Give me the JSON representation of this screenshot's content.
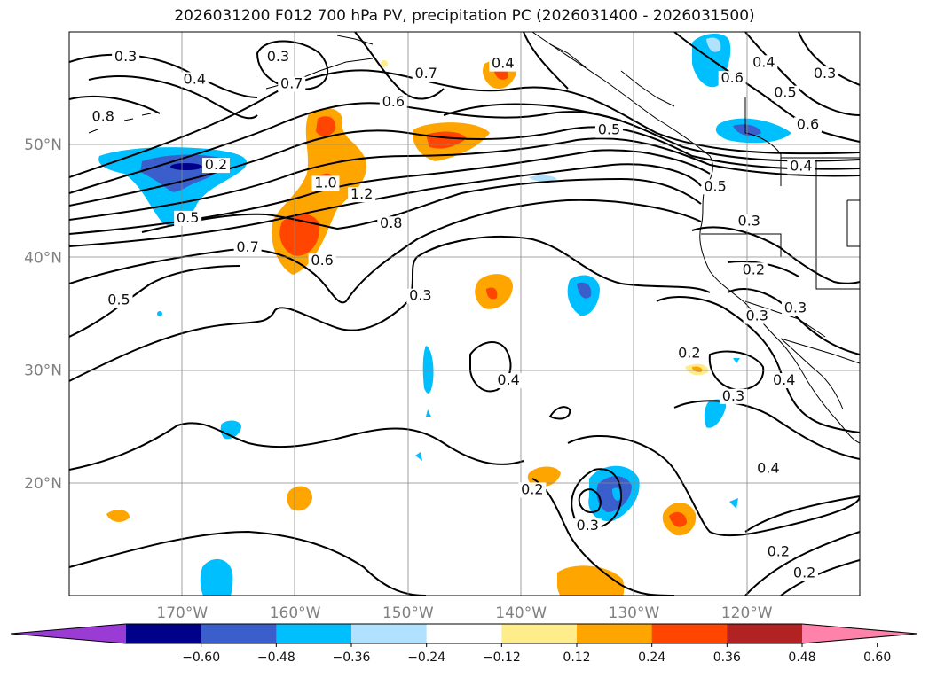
{
  "title": "2026031200 F012 700 hPa PV, precipitation PC (2026031400 - 2026031500)",
  "map": {
    "lon_range": [
      -180,
      -110
    ],
    "lat_range": [
      10,
      60
    ],
    "lat_ticks": [
      {
        "lat": 50,
        "label": "50°N"
      },
      {
        "lat": 40,
        "label": "40°N"
      },
      {
        "lat": 30,
        "label": "30°N"
      },
      {
        "lat": 20,
        "label": "20°N"
      }
    ],
    "lon_ticks": [
      {
        "lon": -170,
        "label": "170°W"
      },
      {
        "lon": -160,
        "label": "160°W"
      },
      {
        "lon": -150,
        "label": "150°W"
      },
      {
        "lon": -140,
        "label": "140°W"
      },
      {
        "lon": -130,
        "label": "130°W"
      },
      {
        "lon": -120,
        "label": "120°W"
      }
    ],
    "contour_labels": [
      {
        "text": "0.3",
        "lon": -175,
        "lat": 57.8
      },
      {
        "text": "0.4",
        "lon": -168.9,
        "lat": 55.8
      },
      {
        "text": "0.8",
        "lon": -177,
        "lat": 52.5
      },
      {
        "text": "0.2",
        "lon": -167,
        "lat": 48.2
      },
      {
        "text": "0.5",
        "lon": -169.5,
        "lat": 43.5
      },
      {
        "text": "0.3",
        "lon": -161.5,
        "lat": 57.8
      },
      {
        "text": "0.7",
        "lon": -160.3,
        "lat": 55.4
      },
      {
        "text": "0.7",
        "lon": -148.4,
        "lat": 56.3
      },
      {
        "text": "0.6",
        "lon": -151.3,
        "lat": 53.8
      },
      {
        "text": "0.4",
        "lon": -141.6,
        "lat": 57.2
      },
      {
        "text": "0.5",
        "lon": -132.2,
        "lat": 51.3
      },
      {
        "text": "1.0",
        "lon": -157.3,
        "lat": 46.6
      },
      {
        "text": "1.2",
        "lon": -154.1,
        "lat": 45.6
      },
      {
        "text": "0.8",
        "lon": -151.5,
        "lat": 43.0
      },
      {
        "text": "0.7",
        "lon": -164.2,
        "lat": 40.9
      },
      {
        "text": "0.6",
        "lon": -157.6,
        "lat": 39.7
      },
      {
        "text": "0.3",
        "lon": -148.9,
        "lat": 36.6
      },
      {
        "text": "0.5",
        "lon": -175.6,
        "lat": 36.2
      },
      {
        "text": "0.4",
        "lon": -141.1,
        "lat": 29.1
      },
      {
        "text": "0.2",
        "lon": -139.0,
        "lat": 19.4
      },
      {
        "text": "0.3",
        "lon": -134.1,
        "lat": 16.2
      },
      {
        "text": "0.6",
        "lon": -121.3,
        "lat": 55.9
      },
      {
        "text": "0.4",
        "lon": -118.5,
        "lat": 57.3
      },
      {
        "text": "0.5",
        "lon": -116.6,
        "lat": 54.6
      },
      {
        "text": "0.3",
        "lon": -113.1,
        "lat": 56.3
      },
      {
        "text": "0.6",
        "lon": -114.6,
        "lat": 51.8
      },
      {
        "text": "0.4",
        "lon": -115.2,
        "lat": 48.1
      },
      {
        "text": "0.5",
        "lon": -122.8,
        "lat": 46.3
      },
      {
        "text": "0.3",
        "lon": -119.8,
        "lat": 43.2
      },
      {
        "text": "0.2",
        "lon": -119.4,
        "lat": 38.9
      },
      {
        "text": "0.3",
        "lon": -119.1,
        "lat": 34.8
      },
      {
        "text": "0.3",
        "lon": -115.7,
        "lat": 35.5
      },
      {
        "text": "0.4",
        "lon": -116.7,
        "lat": 29.1
      },
      {
        "text": "0.2",
        "lon": -125.1,
        "lat": 31.5
      },
      {
        "text": "0.3",
        "lon": -121.2,
        "lat": 27.7
      },
      {
        "text": "0.4",
        "lon": -118.1,
        "lat": 21.3
      },
      {
        "text": "0.2",
        "lon": -117.2,
        "lat": 13.9
      },
      {
        "text": "0.2",
        "lon": -114.9,
        "lat": 12.0
      }
    ]
  },
  "colorbar": {
    "colors": [
      "#9a3bd6",
      "#00008b",
      "#3a5fcd",
      "#00bfff",
      "#b0e2ff",
      "#ffffff",
      "#ffec8b",
      "#ffa500",
      "#ff4500",
      "#b22222",
      "#ff82ab"
    ],
    "tick_labels": [
      "−0.60",
      "−0.48",
      "−0.36",
      "−0.24",
      "−0.12",
      "0.12",
      "0.24",
      "0.36",
      "0.48",
      "0.60"
    ]
  }
}
